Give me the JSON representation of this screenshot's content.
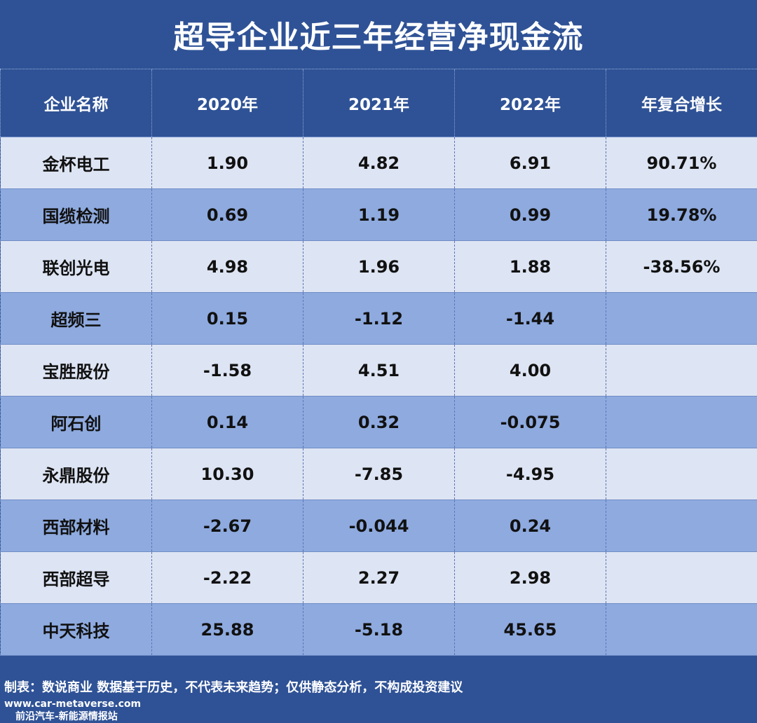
{
  "title": "超导企业近三年经营净现金流",
  "table": {
    "headers": [
      "企业名称",
      "2020年",
      "2021年",
      "2022年",
      "年复合增长"
    ],
    "rows": [
      [
        "金杯电工",
        "1.90",
        "4.82",
        "6.91",
        "90.71%"
      ],
      [
        "国缆检测",
        "0.69",
        "1.19",
        "0.99",
        "19.78%"
      ],
      [
        "联创光电",
        "4.98",
        "1.96",
        "1.88",
        "-38.56%"
      ],
      [
        "超频三",
        "0.15",
        "-1.12",
        "-1.44",
        ""
      ],
      [
        "宝胜股份",
        "-1.58",
        "4.51",
        "4.00",
        ""
      ],
      [
        "阿石创",
        "0.14",
        "0.32",
        "-0.075",
        ""
      ],
      [
        "永鼎股份",
        "10.30",
        "-7.85",
        "-4.95",
        ""
      ],
      [
        "西部材料",
        "-2.67",
        "-0.044",
        "0.24",
        ""
      ],
      [
        "西部超导",
        "-2.22",
        "2.27",
        "2.98",
        ""
      ],
      [
        "中天科技",
        "25.88",
        "-5.18",
        "45.65",
        ""
      ]
    ]
  },
  "footer": {
    "note": "制表：数说商业 数据基于历史，不代表未来趋势；仅供静态分析，不构成投资建议",
    "url": "www.car-metaverse.com",
    "brand": "前沿汽车-新能源情报站"
  },
  "colors": {
    "background": "#2f5296",
    "row_light": "#dde4f3",
    "row_dark": "#8eaadf"
  }
}
